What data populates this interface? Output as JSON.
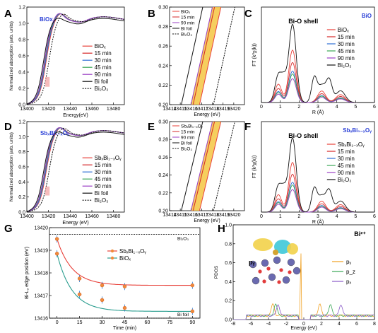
{
  "panels": {
    "A": {
      "label": "A",
      "badge": "BiO",
      "badge_sub": "x",
      "xlabel": "Energy(eV)",
      "ylabel": "Normalized absorption (arb. units)"
    },
    "B": {
      "label": "B",
      "xlabel": "Energy (eV)"
    },
    "C": {
      "label": "C",
      "badge": "BiO",
      "badge_sub": "x",
      "annotation": "Bi-O shell",
      "xlabel": "R (Å)",
      "ylabel": "FT (k³χ(k))"
    },
    "D": {
      "label": "D",
      "badge": "SbₓBi₁₋ₓOᵧ",
      "xlabel": "Energy (eV)",
      "ylabel": "Normalized absorption (arb. units)"
    },
    "E": {
      "label": "E",
      "xlabel": "Energy (eV)"
    },
    "F": {
      "label": "F",
      "badge": "SbₓBi₁₋ₓOᵧ",
      "annotation": "Bi-O shell",
      "xlabel": "R (Å)",
      "ylabel": "FT (k³χ(k))"
    },
    "G": {
      "label": "G",
      "xlabel": "Time (min)",
      "ylabel": "Bi-L₃ edge position (eV)",
      "ref_top": "Bi₂O₃",
      "ref_bottom": "Bi foil"
    },
    "H": {
      "label": "H",
      "badge": "Bi²⁺",
      "xlabel": "Energy (eV)",
      "ylabel": "PDOS",
      "inset_label": "pᵧ"
    }
  },
  "colors": {
    "BiOx": "#e8413a",
    "m15": "#d62728",
    "m30": "#2f6fd6",
    "m45": "#3aa655",
    "m90": "#9b3fc4",
    "foil": "#111111",
    "bi2o3": "#111111",
    "py": "#f0a020",
    "pz": "#3aa655",
    "px": "#8a5ac8",
    "G_sb": "#e8413a",
    "G_biox": "#2a9d8f",
    "badge": "#2a3fd6"
  },
  "chart_data": [
    {
      "panel": "A",
      "type": "line",
      "xlim": [
        13400,
        13490
      ],
      "ylim": [
        0.0,
        1.2
      ],
      "xticks": [
        "13400",
        "13420",
        "13440",
        "13460",
        "13480"
      ],
      "yticks": [
        "0.0",
        "0.2",
        "0.4",
        "0.6",
        "0.8",
        "1.0",
        "1.2"
      ],
      "legend": [
        "BiOₓ",
        "15 min",
        "30 min",
        "45 min",
        "90 min",
        "Bi foil",
        "Bi₂O₃"
      ]
    },
    {
      "panel": "B",
      "type": "line",
      "xlim": [
        13414,
        13421
      ],
      "ylim": [
        0.2,
        0.3
      ],
      "xticks": [
        "13414",
        "13415",
        "13416",
        "13417",
        "13418",
        "13419",
        "13420"
      ],
      "yticks": [
        "0.20",
        "0.22",
        "0.24",
        "0.26",
        "0.28",
        "0.30"
      ],
      "legend": [
        "BiOₓ",
        "15 min",
        "90 min",
        "Bi foil",
        "Bi₂O₃"
      ]
    },
    {
      "panel": "C",
      "type": "line",
      "xlim": [
        0,
        6
      ],
      "ylim": [
        0,
        1
      ],
      "xticks": [
        "0",
        "1",
        "2",
        "3",
        "4",
        "5",
        "6"
      ],
      "legend": [
        "BiOₓ",
        "15 min",
        "30 min",
        "45 min",
        "90 min",
        "Bi₂O₃"
      ]
    },
    {
      "panel": "D",
      "type": "line",
      "xlim": [
        13400,
        13490
      ],
      "ylim": [
        0.0,
        1.2
      ],
      "xticks": [
        "13400",
        "13420",
        "13440",
        "13460",
        "13480"
      ],
      "yticks": [
        "0.0",
        "0.2",
        "0.4",
        "0.6",
        "0.8",
        "1.0",
        "1.2"
      ],
      "legend": [
        "SbₓBi₁₋ₓOᵧ",
        "15 min",
        "30 min",
        "45 min",
        "90 min",
        "Bi foil",
        "Bi₂O₃"
      ]
    },
    {
      "panel": "E",
      "type": "line",
      "xlim": [
        13414,
        13421
      ],
      "ylim": [
        0.2,
        0.3
      ],
      "xticks": [
        "13414",
        "13415",
        "13416",
        "13417",
        "13418",
        "13419",
        "13420"
      ],
      "yticks": [
        "0.20",
        "0.22",
        "0.24",
        "0.26",
        "0.28",
        "0.30"
      ],
      "legend": [
        "SbₓBi₁₋ₓOᵧ",
        "15 min",
        "90 min",
        "Bi foil",
        "Bi₂O₃"
      ]
    },
    {
      "panel": "F",
      "type": "line",
      "xlim": [
        0,
        6
      ],
      "ylim": [
        0,
        1
      ],
      "xticks": [
        "0",
        "1",
        "2",
        "3",
        "4",
        "5",
        "6"
      ],
      "legend": [
        "SbₓBi₁₋ₓOᵧ",
        "15 min",
        "30 min",
        "45 min",
        "90 min",
        "Bi₂O₃"
      ]
    },
    {
      "panel": "G",
      "type": "scatter",
      "xlim": [
        -5,
        95
      ],
      "ylim": [
        13416,
        13420
      ],
      "xticks": [
        "0",
        "15",
        "30",
        "45",
        "60",
        "75",
        "90"
      ],
      "yticks": [
        "13416",
        "13417",
        "13418",
        "13419",
        "13420"
      ],
      "ref_lines": [
        {
          "name": "Bi₂O₃",
          "y": 13419.7
        },
        {
          "name": "Bi foil",
          "y": 13416.0
        }
      ],
      "series": [
        {
          "name": "SbₓBi₁₋ₓOᵧ",
          "x": [
            0,
            15,
            30,
            45,
            90
          ],
          "y": [
            13419.5,
            13417.75,
            13417.45,
            13417.4,
            13417.45
          ]
        },
        {
          "name": "BiOₓ",
          "x": [
            0,
            15,
            30,
            45,
            90
          ],
          "y": [
            13418.85,
            13417.05,
            13416.8,
            13416.45,
            13416.3
          ]
        }
      ]
    },
    {
      "panel": "H",
      "type": "line",
      "xlim": [
        -8,
        8
      ],
      "ylim": [
        0.0,
        1.0
      ],
      "xticks": [
        "-8",
        "-6",
        "-4",
        "-2",
        "0",
        "2",
        "4",
        "6",
        "8"
      ],
      "yticks": [
        "0.0",
        "0.2",
        "0.4",
        "0.6",
        "0.8",
        "1.0"
      ],
      "legend": [
        "pᵧ",
        "p_z",
        "pₓ"
      ]
    }
  ]
}
